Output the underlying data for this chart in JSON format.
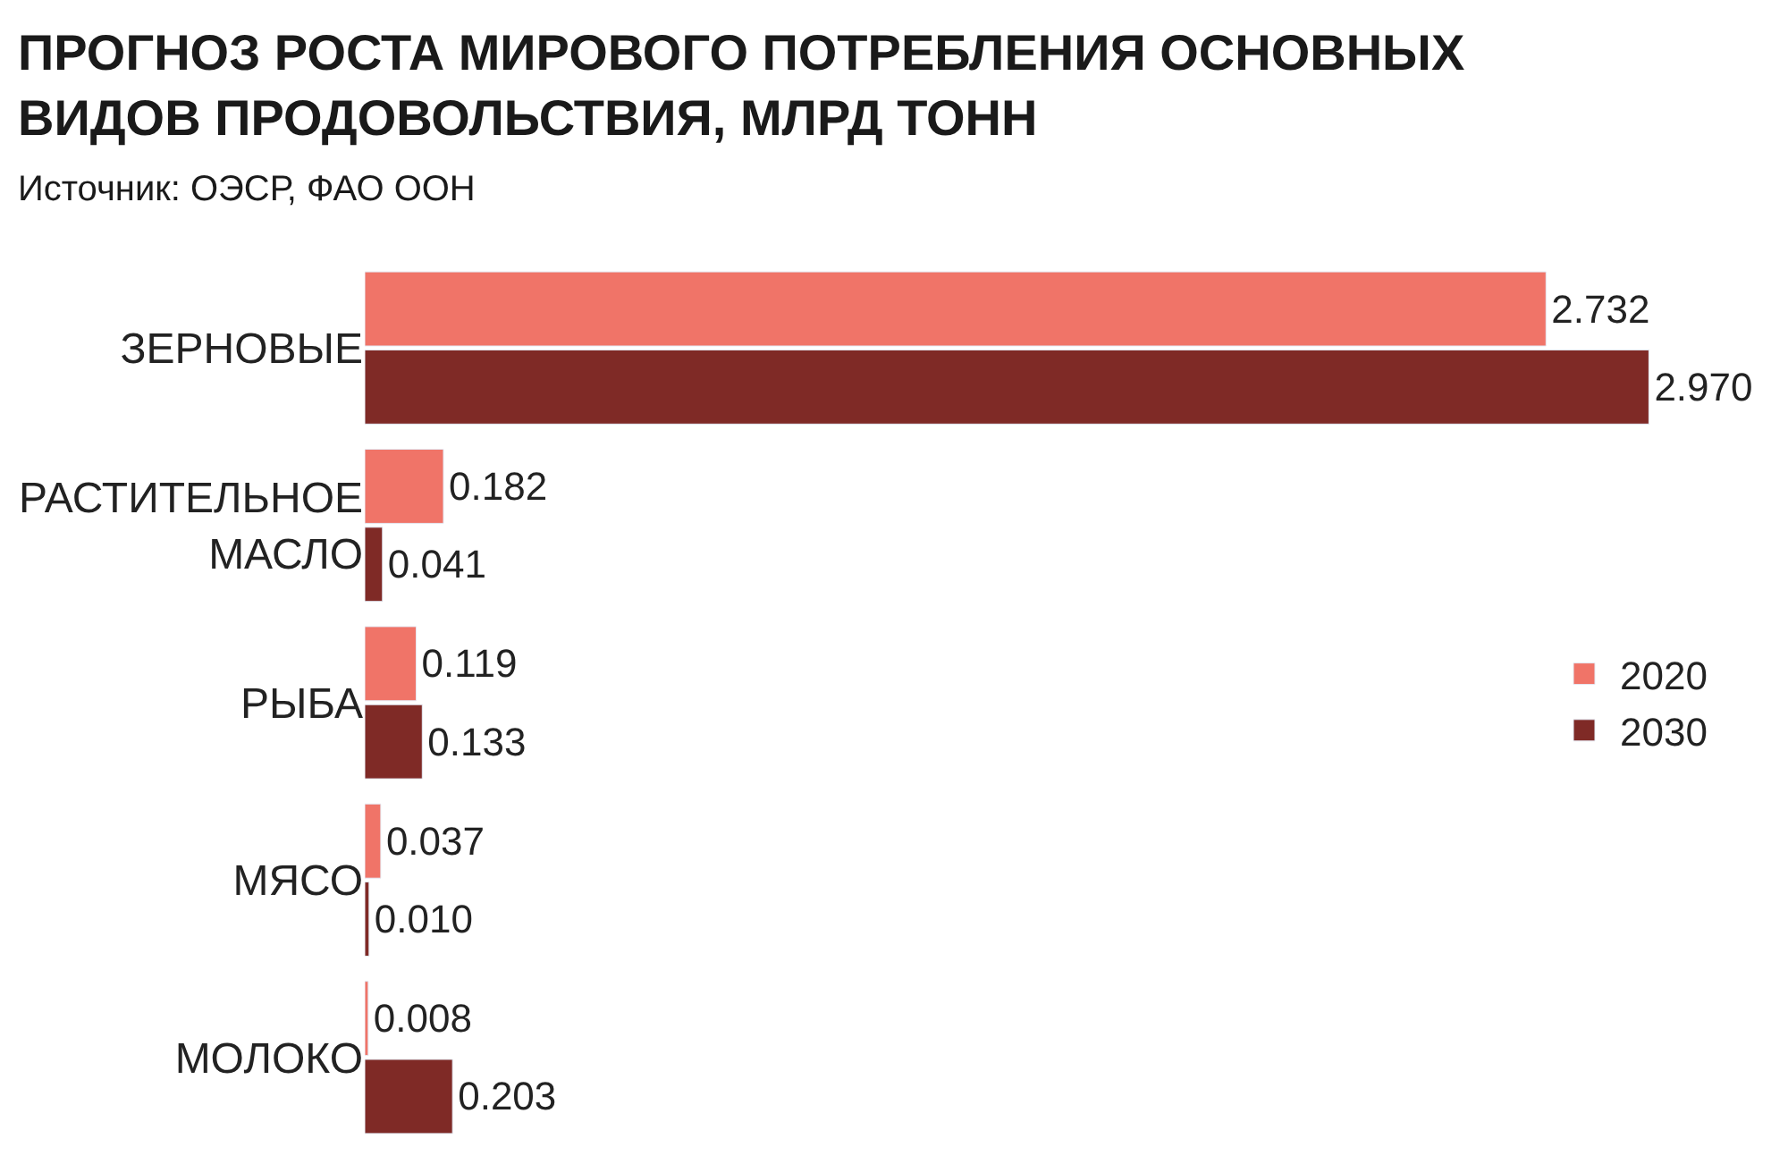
{
  "chart_data": {
    "type": "bar",
    "orientation": "horizontal",
    "title": "ПРОГНОЗ РОСТА МИРОВОГО ПОТРЕБЛЕНИЯ ОСНОВНЫХ ВИДОВ ПРОДОВОЛЬСТВИЯ, МЛРД ТОНН",
    "subtitle": "Источник: ОЭСР, ФАО ООН",
    "categories": [
      "ЗЕРНОВЫЕ",
      "РАСТИТЕЛЬНОЕ МАСЛО",
      "РЫБА",
      "МЯСО",
      "МОЛОКО"
    ],
    "series": [
      {
        "name": "2020",
        "color": "#f07468",
        "values": [
          2.732,
          0.182,
          0.119,
          0.037,
          0.008
        ],
        "value_labels": [
          "2.732",
          "0.182",
          "0.119",
          "0.037",
          "0.008"
        ]
      },
      {
        "name": "2030",
        "color": "#7f2a26",
        "values": [
          2.97,
          0.041,
          0.133,
          0.01,
          0.203
        ],
        "value_labels": [
          "2.970",
          "0.041",
          "0.133",
          "0.010",
          "0.203"
        ]
      }
    ],
    "legend": "right"
  }
}
